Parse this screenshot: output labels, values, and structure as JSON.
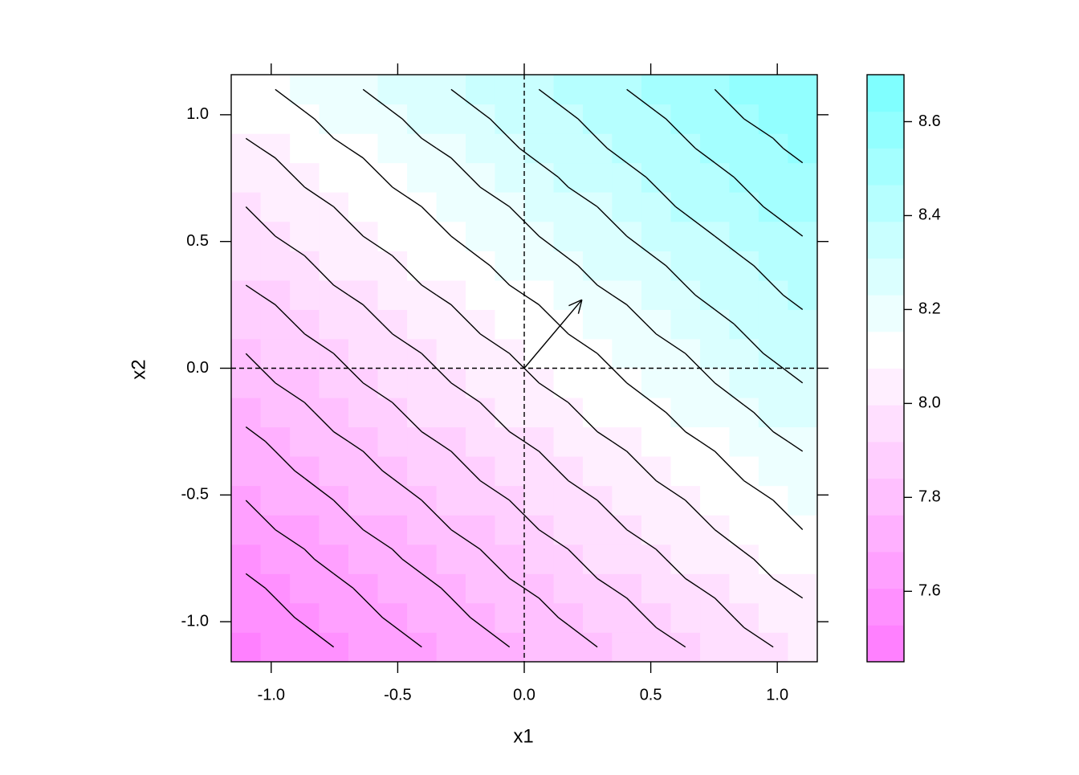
{
  "chart_data": {
    "type": "levelplot",
    "xlabel": "x1",
    "ylabel": "x2",
    "xlim": [
      -1.158,
      1.158
    ],
    "ylim": [
      -1.158,
      1.158
    ],
    "xticks": [
      {
        "value": -1,
        "label": "-1.0"
      },
      -0.5,
      {
        "value": 0,
        "label": "0.0"
      },
      0.5,
      {
        "value": 1,
        "label": "1.0"
      }
    ],
    "yticks": [
      {
        "value": -1,
        "label": "-1.0"
      },
      -0.5,
      {
        "value": 0,
        "label": "0.0"
      },
      0.5,
      {
        "value": 1,
        "label": "1.0"
      }
    ],
    "x": [
      -1.1,
      -0.984,
      -0.868,
      -0.753,
      -0.637,
      -0.521,
      -0.405,
      -0.289,
      -0.174,
      -0.058,
      0.058,
      0.174,
      0.289,
      0.405,
      0.521,
      0.637,
      0.753,
      0.868,
      0.984,
      1.1
    ],
    "y": [
      -1.1,
      -0.984,
      -0.868,
      -0.753,
      -0.637,
      -0.521,
      -0.405,
      -0.289,
      -0.174,
      -0.058,
      0.058,
      0.174,
      0.289,
      0.405,
      0.521,
      0.637,
      0.753,
      0.868,
      0.984,
      1.1
    ],
    "z": [
      [
        7.5,
        7.53,
        7.55,
        7.58,
        7.61,
        7.63,
        7.66,
        7.69,
        7.71,
        7.74,
        7.77,
        7.79,
        7.82,
        7.85,
        7.88,
        7.9,
        7.93,
        7.96,
        7.98,
        8.01
      ],
      [
        7.53,
        7.56,
        7.59,
        7.61,
        7.64,
        7.67,
        7.69,
        7.72,
        7.75,
        7.77,
        7.8,
        7.83,
        7.85,
        7.88,
        7.91,
        7.93,
        7.96,
        7.99,
        8.02,
        8.04
      ],
      [
        7.56,
        7.59,
        7.62,
        7.64,
        7.67,
        7.7,
        7.72,
        7.75,
        7.78,
        7.81,
        7.83,
        7.86,
        7.89,
        7.91,
        7.94,
        7.97,
        7.99,
        8.02,
        8.05,
        8.07
      ],
      [
        7.6,
        7.62,
        7.65,
        7.68,
        7.7,
        7.73,
        7.76,
        7.78,
        7.81,
        7.84,
        7.87,
        7.89,
        7.92,
        7.95,
        7.97,
        8.0,
        8.03,
        8.05,
        8.08,
        8.11
      ],
      [
        7.63,
        7.66,
        7.68,
        7.71,
        7.74,
        7.76,
        7.79,
        7.82,
        7.84,
        7.87,
        7.9,
        7.92,
        7.95,
        7.98,
        8.0,
        8.03,
        8.06,
        8.09,
        8.11,
        8.14
      ],
      [
        7.66,
        7.69,
        7.71,
        7.74,
        7.77,
        7.79,
        7.82,
        7.85,
        7.88,
        7.9,
        7.93,
        7.96,
        7.98,
        8.01,
        8.04,
        8.06,
        8.09,
        8.12,
        8.14,
        8.17
      ],
      [
        7.69,
        7.72,
        7.75,
        7.77,
        7.8,
        7.83,
        7.85,
        7.88,
        7.91,
        7.93,
        7.96,
        7.99,
        8.01,
        8.04,
        8.07,
        8.1,
        8.12,
        8.15,
        8.18,
        8.2
      ],
      [
        7.72,
        7.75,
        7.78,
        7.81,
        7.83,
        7.86,
        7.89,
        7.91,
        7.94,
        7.97,
        7.99,
        8.02,
        8.05,
        8.07,
        8.1,
        8.13,
        8.15,
        8.18,
        8.21,
        8.23
      ],
      [
        7.76,
        7.78,
        7.81,
        7.84,
        7.86,
        7.89,
        7.92,
        7.95,
        7.97,
        8.0,
        8.03,
        8.05,
        8.08,
        8.11,
        8.13,
        8.16,
        8.19,
        8.21,
        8.24,
        8.27
      ],
      [
        7.79,
        7.82,
        7.84,
        7.87,
        7.9,
        7.92,
        7.95,
        7.98,
        8.0,
        8.03,
        8.06,
        8.08,
        8.11,
        8.14,
        8.17,
        8.19,
        8.22,
        8.25,
        8.27,
        8.3
      ],
      [
        7.82,
        7.85,
        7.88,
        7.9,
        7.93,
        7.96,
        7.98,
        8.01,
        8.04,
        8.06,
        8.09,
        8.12,
        8.14,
        8.17,
        8.2,
        8.22,
        8.25,
        8.28,
        8.31,
        8.33
      ],
      [
        7.85,
        7.88,
        7.91,
        7.93,
        7.96,
        7.99,
        8.01,
        8.04,
        8.07,
        8.1,
        8.12,
        8.15,
        8.18,
        8.2,
        8.23,
        8.26,
        8.28,
        8.31,
        8.34,
        8.36
      ],
      [
        7.89,
        7.91,
        7.94,
        7.97,
        7.99,
        8.02,
        8.05,
        8.07,
        8.1,
        8.13,
        8.15,
        8.18,
        8.21,
        8.23,
        8.26,
        8.29,
        8.32,
        8.34,
        8.37,
        8.4
      ],
      [
        7.92,
        7.94,
        7.97,
        8.0,
        8.02,
        8.05,
        8.08,
        8.11,
        8.13,
        8.16,
        8.19,
        8.21,
        8.24,
        8.27,
        8.29,
        8.32,
        8.35,
        8.37,
        8.4,
        8.43
      ],
      [
        7.95,
        7.98,
        8.0,
        8.03,
        8.06,
        8.08,
        8.11,
        8.14,
        8.17,
        8.19,
        8.22,
        8.25,
        8.27,
        8.3,
        8.33,
        8.35,
        8.38,
        8.41,
        8.43,
        8.46
      ],
      [
        7.98,
        8.01,
        8.04,
        8.06,
        8.09,
        8.12,
        8.14,
        8.17,
        8.2,
        8.22,
        8.25,
        8.28,
        8.3,
        8.33,
        8.36,
        8.39,
        8.41,
        8.44,
        8.47,
        8.49
      ],
      [
        8.01,
        8.04,
        8.07,
        8.1,
        8.12,
        8.15,
        8.18,
        8.2,
        8.23,
        8.26,
        8.28,
        8.31,
        8.34,
        8.36,
        8.39,
        8.42,
        8.44,
        8.47,
        8.5,
        8.52
      ],
      [
        8.05,
        8.07,
        8.1,
        8.13,
        8.15,
        8.18,
        8.21,
        8.23,
        8.26,
        8.29,
        8.32,
        8.34,
        8.37,
        8.4,
        8.42,
        8.45,
        8.48,
        8.5,
        8.53,
        8.56
      ],
      [
        8.08,
        8.11,
        8.13,
        8.16,
        8.19,
        8.21,
        8.24,
        8.27,
        8.29,
        8.32,
        8.35,
        8.37,
        8.4,
        8.43,
        8.45,
        8.48,
        8.51,
        8.54,
        8.56,
        8.59
      ],
      [
        8.11,
        8.14,
        8.17,
        8.19,
        8.22,
        8.25,
        8.27,
        8.3,
        8.33,
        8.35,
        8.38,
        8.41,
        8.43,
        8.46,
        8.49,
        8.51,
        8.54,
        8.57,
        8.6,
        8.62
      ]
    ],
    "levels": [
      7.5,
      7.58,
      7.66,
      7.74,
      7.82,
      7.9,
      7.98,
      8.06,
      8.14,
      8.22,
      8.3,
      8.38,
      8.46,
      8.54,
      8.62
    ],
    "zlim": [
      7.45,
      8.7
    ],
    "bands": 16,
    "zticks": [
      7.6,
      7.8,
      {
        "value": 8,
        "label": "8.0"
      },
      8.2,
      8.4,
      8.6
    ],
    "colors": [
      "#FF80FF",
      "#FFFFFF",
      "#80FFFF"
    ],
    "reference_lines": {
      "x": 0,
      "y": 0
    },
    "arrow": {
      "x": [
        0,
        0.228
      ],
      "y": [
        0,
        0.27
      ]
    }
  }
}
